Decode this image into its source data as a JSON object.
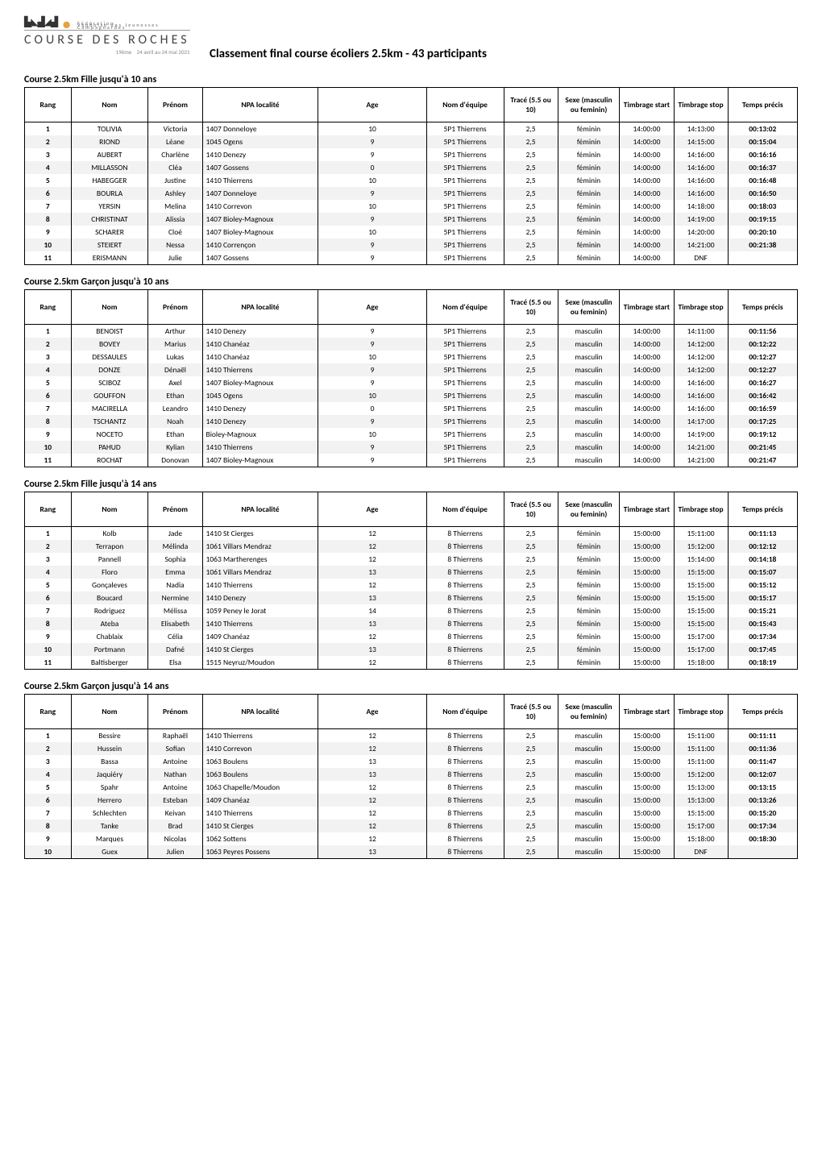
{
  "logo": {
    "name": "COURSE DES ROCHES",
    "edition": "19ème",
    "dates": "24 avril au 24 mai 2021",
    "sponsor_lines": [
      "Fédération",
      "Vaudoise des Jeunesses",
      "Campagnardes"
    ]
  },
  "page_title": "Classement final course écoliers 2.5km - 43 participants",
  "headers": {
    "rang": "Rang",
    "nom": "Nom",
    "prenom": "Prénom",
    "npa": "NPA localité",
    "age": "Age",
    "equipe": "Nom d'équipe",
    "trace": "Tracé (5.5 ou 10)",
    "sexe": "Sexe (masculin ou feminin)",
    "t_start": "Timbrage start",
    "t_stop": "Timbrage stop",
    "t_precis": "Temps précis"
  },
  "sections": [
    {
      "title": "Course 2.5km Fille jusqu'à 10 ans",
      "rows": [
        {
          "rang": "1",
          "nom": "TOLIVIA",
          "prenom": "Victoria",
          "npa": "1407 Donneloye",
          "age": "10",
          "equipe": "5P1 Thierrens",
          "trace": "2,5",
          "sexe": "féminin",
          "ts": "14:00:00",
          "te": "14:13:00",
          "tp": "00:13:02"
        },
        {
          "rang": "2",
          "nom": "RIOND",
          "prenom": "Léane",
          "npa": "1045 Ogens",
          "age": "9",
          "equipe": "5P1 Thierrens",
          "trace": "2,5",
          "sexe": "féminin",
          "ts": "14:00:00",
          "te": "14:15:00",
          "tp": "00:15:04"
        },
        {
          "rang": "3",
          "nom": "AUBERT",
          "prenom": "Charlène",
          "npa": "1410 Denezy",
          "age": "9",
          "equipe": "5P1 Thierrens",
          "trace": "2,5",
          "sexe": "féminin",
          "ts": "14:00:00",
          "te": "14:16:00",
          "tp": "00:16:16"
        },
        {
          "rang": "4",
          "nom": "MILLASSON",
          "prenom": "Cléa",
          "npa": "1407 Gossens",
          "age": "0",
          "equipe": "5P1 Thierrens",
          "trace": "2,5",
          "sexe": "féminin",
          "ts": "14:00:00",
          "te": "14:16:00",
          "tp": "00:16:37"
        },
        {
          "rang": "5",
          "nom": "HABEGGER",
          "prenom": "Justine",
          "npa": "1410 Thierrens",
          "age": "10",
          "equipe": "5P1 Thierrens",
          "trace": "2,5",
          "sexe": "féminin",
          "ts": "14:00:00",
          "te": "14:16:00",
          "tp": "00:16:48"
        },
        {
          "rang": "6",
          "nom": "BOURLA",
          "prenom": "Ashley",
          "npa": "1407 Donneloye",
          "age": "9",
          "equipe": "5P1 Thierrens",
          "trace": "2,5",
          "sexe": "féminin",
          "ts": "14:00:00",
          "te": "14:16:00",
          "tp": "00:16:50"
        },
        {
          "rang": "7",
          "nom": "YERSIN",
          "prenom": "Melina",
          "npa": "1410 Correvon",
          "age": "10",
          "equipe": "5P1 Thierrens",
          "trace": "2,5",
          "sexe": "féminin",
          "ts": "14:00:00",
          "te": "14:18:00",
          "tp": "00:18:03"
        },
        {
          "rang": "8",
          "nom": "CHRISTINAT",
          "prenom": "Alissia",
          "npa": "1407 Bioley-Magnoux",
          "age": "9",
          "equipe": "5P1 Thierrens",
          "trace": "2,5",
          "sexe": "féminin",
          "ts": "14:00:00",
          "te": "14:19:00",
          "tp": "00:19:15"
        },
        {
          "rang": "9",
          "nom": "SCHARER",
          "prenom": "Cloé",
          "npa": "1407 Bioley-Magnoux",
          "age": "10",
          "equipe": "5P1 Thierrens",
          "trace": "2,5",
          "sexe": "féminin",
          "ts": "14:00:00",
          "te": "14:20:00",
          "tp": "00:20:10"
        },
        {
          "rang": "10",
          "nom": "STEIERT",
          "prenom": "Nessa",
          "npa": "1410 Corrençon",
          "age": "9",
          "equipe": "5P1 Thierrens",
          "trace": "2,5",
          "sexe": "féminin",
          "ts": "14:00:00",
          "te": "14:21:00",
          "tp": "00:21:38"
        },
        {
          "rang": "11",
          "nom": "ERISMANN",
          "prenom": "Julie",
          "npa": "1407 Gossens",
          "age": "9",
          "equipe": "5P1 Thierrens",
          "trace": "2,5",
          "sexe": "féminin",
          "ts": "14:00:00",
          "te": "DNF",
          "tp": ""
        }
      ]
    },
    {
      "title": "Course 2.5km Garçon jusqu'à 10 ans",
      "rows": [
        {
          "rang": "1",
          "nom": "BENOIST",
          "prenom": "Arthur",
          "npa": "1410 Denezy",
          "age": "9",
          "equipe": "5P1 Thierrens",
          "trace": "2,5",
          "sexe": "masculin",
          "ts": "14:00:00",
          "te": "14:11:00",
          "tp": "00:11:56"
        },
        {
          "rang": "2",
          "nom": "BOVEY",
          "prenom": "Marius",
          "npa": "1410 Chanéaz",
          "age": "9",
          "equipe": "5P1 Thierrens",
          "trace": "2,5",
          "sexe": "masculin",
          "ts": "14:00:00",
          "te": "14:12:00",
          "tp": "00:12:22"
        },
        {
          "rang": "3",
          "nom": "DESSAULES",
          "prenom": "Lukas",
          "npa": "1410 Chanéaz",
          "age": "10",
          "equipe": "5P1 Thierrens",
          "trace": "2,5",
          "sexe": "masculin",
          "ts": "14:00:00",
          "te": "14:12:00",
          "tp": "00:12:27"
        },
        {
          "rang": "4",
          "nom": "DONZE",
          "prenom": "Dénaël",
          "npa": "1410 Thierrens",
          "age": "9",
          "equipe": "5P1 Thierrens",
          "trace": "2,5",
          "sexe": "masculin",
          "ts": "14:00:00",
          "te": "14:12:00",
          "tp": "00:12:27"
        },
        {
          "rang": "5",
          "nom": "SCIBOZ",
          "prenom": "Axel",
          "npa": "1407 Bioley-Magnoux",
          "age": "9",
          "equipe": "5P1 Thierrens",
          "trace": "2,5",
          "sexe": "masculin",
          "ts": "14:00:00",
          "te": "14:16:00",
          "tp": "00:16:27"
        },
        {
          "rang": "6",
          "nom": "GOUFFON",
          "prenom": "Ethan",
          "npa": "1045 Ogens",
          "age": "10",
          "equipe": "5P1 Thierrens",
          "trace": "2,5",
          "sexe": "masculin",
          "ts": "14:00:00",
          "te": "14:16:00",
          "tp": "00:16:42"
        },
        {
          "rang": "7",
          "nom": "MACIRELLA",
          "prenom": "Leandro",
          "npa": "1410 Denezy",
          "age": "0",
          "equipe": "5P1 Thierrens",
          "trace": "2,5",
          "sexe": "masculin",
          "ts": "14:00:00",
          "te": "14:16:00",
          "tp": "00:16:59"
        },
        {
          "rang": "8",
          "nom": "TSCHANTZ",
          "prenom": "Noah",
          "npa": "1410 Denezy",
          "age": "9",
          "equipe": "5P1 Thierrens",
          "trace": "2,5",
          "sexe": "masculin",
          "ts": "14:00:00",
          "te": "14:17:00",
          "tp": "00:17:25"
        },
        {
          "rang": "9",
          "nom": "NOCETO",
          "prenom": "Ethan",
          "npa": "Bioley-Magnoux",
          "age": "10",
          "equipe": "5P1 Thierrens",
          "trace": "2,5",
          "sexe": "masculin",
          "ts": "14:00:00",
          "te": "14:19:00",
          "tp": "00:19:12"
        },
        {
          "rang": "10",
          "nom": "PAHUD",
          "prenom": "Kylian",
          "npa": "1410 Thierrens",
          "age": "9",
          "equipe": "5P1 Thierrens",
          "trace": "2,5",
          "sexe": "masculin",
          "ts": "14:00:00",
          "te": "14:21:00",
          "tp": "00:21:45"
        },
        {
          "rang": "11",
          "nom": "ROCHAT",
          "prenom": "Donovan",
          "npa": "1407 Bioley-Magnoux",
          "age": "9",
          "equipe": "5P1 Thierrens",
          "trace": "2,5",
          "sexe": "masculin",
          "ts": "14:00:00",
          "te": "14:21:00",
          "tp": "00:21:47"
        }
      ]
    },
    {
      "title": "Course 2.5km Fille jusqu'à 14 ans",
      "rows": [
        {
          "rang": "1",
          "nom": "Kolb",
          "prenom": "Jade",
          "npa": "1410 St Cierges",
          "age": "12",
          "equipe": "8 Thierrens",
          "trace": "2,5",
          "sexe": "féminin",
          "ts": "15:00:00",
          "te": "15:11:00",
          "tp": "00:11:13"
        },
        {
          "rang": "2",
          "nom": "Terrapon",
          "prenom": "Mélinda",
          "npa": "1061 Villars Mendraz",
          "age": "12",
          "equipe": "8 Thierrens",
          "trace": "2,5",
          "sexe": "féminin",
          "ts": "15:00:00",
          "te": "15:12:00",
          "tp": "00:12:12"
        },
        {
          "rang": "3",
          "nom": "Pannell",
          "prenom": "Sophia",
          "npa": "1063 Martherenges",
          "age": "12",
          "equipe": "8 Thierrens",
          "trace": "2,5",
          "sexe": "féminin",
          "ts": "15:00:00",
          "te": "15:14:00",
          "tp": "00:14:18"
        },
        {
          "rang": "4",
          "nom": "Floro",
          "prenom": "Emma",
          "npa": "1061 Villars Mendraz",
          "age": "13",
          "equipe": "8 Thierrens",
          "trace": "2,5",
          "sexe": "féminin",
          "ts": "15:00:00",
          "te": "15:15:00",
          "tp": "00:15:07"
        },
        {
          "rang": "5",
          "nom": "Gonçaleves",
          "prenom": "Nadia",
          "npa": "1410 Thierrens",
          "age": "12",
          "equipe": "8 Thierrens",
          "trace": "2,5",
          "sexe": "féminin",
          "ts": "15:00:00",
          "te": "15:15:00",
          "tp": "00:15:12"
        },
        {
          "rang": "6",
          "nom": "Boucard",
          "prenom": "Nermine",
          "npa": "1410 Denezy",
          "age": "13",
          "equipe": "8 Thierrens",
          "trace": "2,5",
          "sexe": "féminin",
          "ts": "15:00:00",
          "te": "15:15:00",
          "tp": "00:15:17"
        },
        {
          "rang": "7",
          "nom": "Rodriguez",
          "prenom": "Mélissa",
          "npa": "1059 Peney le Jorat",
          "age": "14",
          "equipe": "8 Thierrens",
          "trace": "2,5",
          "sexe": "féminin",
          "ts": "15:00:00",
          "te": "15:15:00",
          "tp": "00:15:21"
        },
        {
          "rang": "8",
          "nom": "Ateba",
          "prenom": "Elisabeth",
          "npa": "1410 Thierrens",
          "age": "13",
          "equipe": "8 Thierrens",
          "trace": "2,5",
          "sexe": "féminin",
          "ts": "15:00:00",
          "te": "15:15:00",
          "tp": "00:15:43"
        },
        {
          "rang": "9",
          "nom": "Chablaix",
          "prenom": "Célia",
          "npa": "1409 Chanéaz",
          "age": "12",
          "equipe": "8 Thierrens",
          "trace": "2,5",
          "sexe": "féminin",
          "ts": "15:00:00",
          "te": "15:17:00",
          "tp": "00:17:34"
        },
        {
          "rang": "10",
          "nom": "Portmann",
          "prenom": "Dafné",
          "npa": "1410 St Cierges",
          "age": "13",
          "equipe": "8 Thierrens",
          "trace": "2,5",
          "sexe": "féminin",
          "ts": "15:00:00",
          "te": "15:17:00",
          "tp": "00:17:45"
        },
        {
          "rang": "11",
          "nom": "Baltisberger",
          "prenom": "Elsa",
          "npa": "1515 Neyruz/Moudon",
          "age": "12",
          "equipe": "8 Thierrens",
          "trace": "2,5",
          "sexe": "féminin",
          "ts": "15:00:00",
          "te": "15:18:00",
          "tp": "00:18:19"
        }
      ]
    },
    {
      "title": "Course 2.5km Garçon jusqu'à 14 ans",
      "rows": [
        {
          "rang": "1",
          "nom": "Bessire",
          "prenom": "Raphaël",
          "npa": "1410 Thierrens",
          "age": "12",
          "equipe": "8 Thierrens",
          "trace": "2,5",
          "sexe": "masculin",
          "ts": "15:00:00",
          "te": "15:11:00",
          "tp": "00:11:11"
        },
        {
          "rang": "2",
          "nom": "Hussein",
          "prenom": "Sofian",
          "npa": "1410 Correvon",
          "age": "12",
          "equipe": "8 Thierrens",
          "trace": "2,5",
          "sexe": "masculin",
          "ts": "15:00:00",
          "te": "15:11:00",
          "tp": "00:11:36"
        },
        {
          "rang": "3",
          "nom": "Bassa",
          "prenom": "Antoine",
          "npa": "1063 Boulens",
          "age": "13",
          "equipe": "8 Thierrens",
          "trace": "2,5",
          "sexe": "masculin",
          "ts": "15:00:00",
          "te": "15:11:00",
          "tp": "00:11:47"
        },
        {
          "rang": "4",
          "nom": "Jaquiéry",
          "prenom": "Nathan",
          "npa": "1063 Boulens",
          "age": "13",
          "equipe": "8 Thierrens",
          "trace": "2,5",
          "sexe": "masculin",
          "ts": "15:00:00",
          "te": "15:12:00",
          "tp": "00:12:07"
        },
        {
          "rang": "5",
          "nom": "Spahr",
          "prenom": "Antoine",
          "npa": "1063 Chapelle/Moudon",
          "age": "12",
          "equipe": "8 Thierrens",
          "trace": "2,5",
          "sexe": "masculin",
          "ts": "15:00:00",
          "te": "15:13:00",
          "tp": "00:13:15"
        },
        {
          "rang": "6",
          "nom": "Herrero",
          "prenom": "Esteban",
          "npa": "1409 Chanéaz",
          "age": "12",
          "equipe": "8 Thierrens",
          "trace": "2,5",
          "sexe": "masculin",
          "ts": "15:00:00",
          "te": "15:13:00",
          "tp": "00:13:26"
        },
        {
          "rang": "7",
          "nom": "Schlechten",
          "prenom": "Keivan",
          "npa": "1410 Thierrens",
          "age": "12",
          "equipe": "8 Thierrens",
          "trace": "2,5",
          "sexe": "masculin",
          "ts": "15:00:00",
          "te": "15:15:00",
          "tp": "00:15:20"
        },
        {
          "rang": "8",
          "nom": "Tanke",
          "prenom": "Brad",
          "npa": "1410 St Cierges",
          "age": "12",
          "equipe": "8 Thierrens",
          "trace": "2,5",
          "sexe": "masculin",
          "ts": "15:00:00",
          "te": "15:17:00",
          "tp": "00:17:34"
        },
        {
          "rang": "9",
          "nom": "Marques",
          "prenom": "Nicolas",
          "npa": "1062 Sottens",
          "age": "12",
          "equipe": "8 Thierrens",
          "trace": "2,5",
          "sexe": "masculin",
          "ts": "15:00:00",
          "te": "15:18:00",
          "tp": "00:18:30"
        },
        {
          "rang": "10",
          "nom": "Guex",
          "prenom": "Julien",
          "npa": "1063 Peyres Possens",
          "age": "13",
          "equipe": "8 Thierrens",
          "trace": "2,5",
          "sexe": "masculin",
          "ts": "15:00:00",
          "te": "DNF",
          "tp": ""
        }
      ]
    }
  ]
}
